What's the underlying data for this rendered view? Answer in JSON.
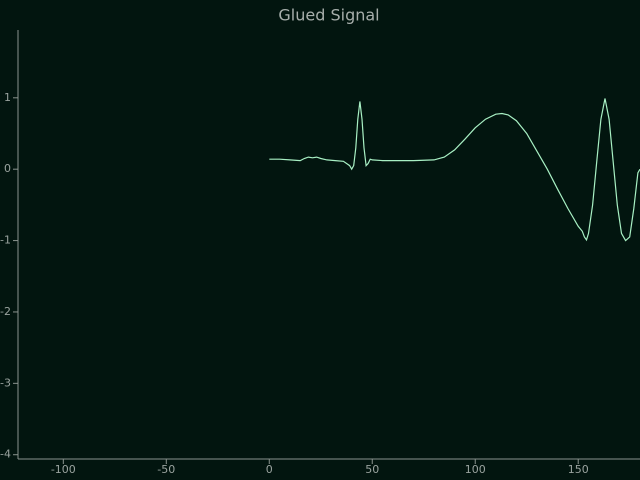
{
  "chart_data": {
    "type": "line",
    "title": "Glued Signal",
    "x": [
      0,
      5,
      10,
      15,
      17,
      19,
      21,
      23,
      25,
      28,
      32,
      36,
      39,
      40,
      41,
      42,
      43,
      44,
      45,
      46,
      47,
      48,
      49,
      50,
      55,
      60,
      70,
      80,
      85,
      90,
      95,
      100,
      105,
      110,
      113,
      116,
      120,
      125,
      130,
      135,
      140,
      145,
      150,
      152,
      153,
      154,
      155,
      157,
      159,
      161,
      163,
      165,
      167,
      169,
      171,
      173,
      175,
      177,
      179,
      180
    ],
    "series": [
      {
        "name": "Glued Signal",
        "color": "#a8f0c4",
        "values": [
          0.14,
          0.14,
          0.13,
          0.12,
          0.15,
          0.17,
          0.16,
          0.17,
          0.15,
          0.13,
          0.12,
          0.11,
          0.05,
          0.0,
          0.05,
          0.3,
          0.7,
          0.95,
          0.7,
          0.3,
          0.05,
          0.08,
          0.14,
          0.13,
          0.12,
          0.12,
          0.12,
          0.13,
          0.17,
          0.27,
          0.42,
          0.58,
          0.7,
          0.77,
          0.78,
          0.76,
          0.68,
          0.5,
          0.25,
          0.0,
          -0.28,
          -0.55,
          -0.8,
          -0.87,
          -0.95,
          -0.99,
          -0.9,
          -0.5,
          0.1,
          0.7,
          0.99,
          0.7,
          0.1,
          -0.5,
          -0.9,
          -1.0,
          -0.95,
          -0.55,
          -0.05,
          0.0
        ]
      }
    ],
    "xlim": [
      -122,
      180
    ],
    "ylim": [
      -4.06,
      1.95
    ],
    "xticks": [
      -100,
      -50,
      0,
      50,
      100,
      150
    ],
    "yticks": [
      1,
      0,
      -1,
      -2,
      -3,
      -4
    ]
  }
}
